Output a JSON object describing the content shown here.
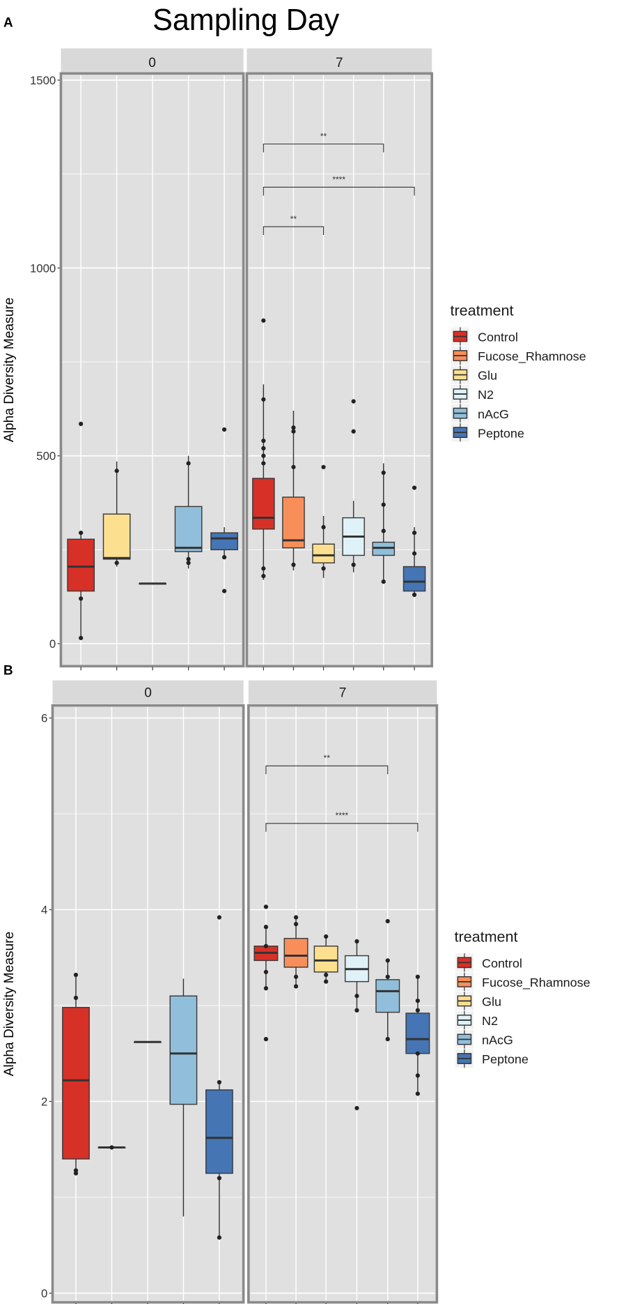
{
  "title": "Sampling Day",
  "legend": {
    "title": "treatment",
    "items": [
      {
        "label": "Control",
        "color": "#d73027"
      },
      {
        "label": "Fucose_Rhamnose",
        "color": "#f88f5a"
      },
      {
        "label": "Glu",
        "color": "#fde08f"
      },
      {
        "label": "N2",
        "color": "#dff2f8"
      },
      {
        "label": "nAcG",
        "color": "#91bfdb"
      },
      {
        "label": "Peptone",
        "color": "#4575b4"
      }
    ]
  },
  "chart_data": [
    {
      "type": "box",
      "panel_label": "A",
      "ylabel": "Alpha Diversity Measure",
      "ylim": [
        0,
        1500
      ],
      "yticks": [
        0,
        500,
        1000,
        1500
      ],
      "facets": [
        {
          "label": "0",
          "groups": [
            {
              "treatment": "Control",
              "q1": 140,
              "median": 205,
              "q3": 278,
              "lo": 15,
              "hi": 295,
              "points": [
                585,
                295,
                120,
                15
              ]
            },
            {
              "treatment": "Glu",
              "q1": 225,
              "median": 228,
              "q3": 345,
              "lo": 205,
              "hi": 485,
              "points": [
                460,
                215
              ]
            },
            {
              "treatment": "N2",
              "q1": 160,
              "median": 160,
              "q3": 160,
              "lo": 160,
              "hi": 160,
              "points": []
            },
            {
              "treatment": "nAcG",
              "q1": 245,
              "median": 255,
              "q3": 365,
              "lo": 200,
              "hi": 500,
              "points": [
                480,
                225,
                215
              ]
            },
            {
              "treatment": "Peptone",
              "q1": 250,
              "median": 280,
              "q3": 295,
              "lo": 230,
              "hi": 310,
              "points": [
                570,
                140,
                230
              ]
            }
          ],
          "brackets": []
        },
        {
          "label": "7",
          "groups": [
            {
              "treatment": "Control",
              "q1": 305,
              "median": 335,
              "q3": 440,
              "lo": 170,
              "hi": 690,
              "points": [
                860,
                650,
                540,
                520,
                500,
                480,
                200,
                180
              ]
            },
            {
              "treatment": "Fucose_Rhamnose",
              "q1": 255,
              "median": 275,
              "q3": 390,
              "lo": 195,
              "hi": 620,
              "points": [
                575,
                565,
                470,
                210
              ]
            },
            {
              "treatment": "Glu",
              "q1": 215,
              "median": 235,
              "q3": 265,
              "lo": 175,
              "hi": 340,
              "points": [
                470,
                310,
                200
              ]
            },
            {
              "treatment": "N2",
              "q1": 235,
              "median": 285,
              "q3": 335,
              "lo": 190,
              "hi": 380,
              "points": [
                645,
                565,
                210
              ]
            },
            {
              "treatment": "nAcG",
              "q1": 235,
              "median": 255,
              "q3": 270,
              "lo": 165,
              "hi": 480,
              "points": [
                455,
                370,
                300,
                165
              ]
            },
            {
              "treatment": "Peptone",
              "q1": 140,
              "median": 165,
              "q3": 205,
              "lo": 125,
              "hi": 310,
              "points": [
                415,
                295,
                240,
                130
              ]
            }
          ],
          "brackets": [
            {
              "from": 0,
              "to": 4,
              "y": 1330,
              "label": "**"
            },
            {
              "from": 0,
              "to": 5,
              "y": 1215,
              "label": "****"
            },
            {
              "from": 0,
              "to": 2,
              "y": 1110,
              "label": "**"
            }
          ]
        }
      ]
    },
    {
      "type": "box",
      "panel_label": "B",
      "ylabel": "Alpha Diversity Measure",
      "ylim": [
        0,
        6
      ],
      "yticks": [
        0,
        2,
        4,
        6
      ],
      "facets": [
        {
          "label": "0",
          "groups": [
            {
              "treatment": "Control",
              "q1": 1.4,
              "median": 2.22,
              "q3": 2.98,
              "lo": 1.25,
              "hi": 3.32,
              "points": [
                3.32,
                3.08,
                1.28,
                1.25
              ]
            },
            {
              "treatment": "Glu",
              "q1": 1.52,
              "median": 1.52,
              "q3": 1.52,
              "lo": 1.52,
              "hi": 1.52,
              "points": [
                1.52
              ]
            },
            {
              "treatment": "N2",
              "q1": 2.62,
              "median": 2.62,
              "q3": 2.62,
              "lo": 2.62,
              "hi": 2.62,
              "points": []
            },
            {
              "treatment": "nAcG",
              "q1": 1.97,
              "median": 2.5,
              "q3": 3.1,
              "lo": 0.8,
              "hi": 3.28,
              "points": []
            },
            {
              "treatment": "Peptone",
              "q1": 1.25,
              "median": 1.62,
              "q3": 2.12,
              "lo": 0.58,
              "hi": 2.22,
              "points": [
                3.92,
                2.2,
                1.2,
                0.58
              ]
            }
          ],
          "brackets": []
        },
        {
          "label": "7",
          "groups": [
            {
              "treatment": "Control",
              "q1": 3.47,
              "median": 3.55,
              "q3": 3.62,
              "lo": 3.2,
              "hi": 3.82,
              "points": [
                4.03,
                3.82,
                3.62,
                3.35,
                3.18,
                2.65
              ]
            },
            {
              "treatment": "Fucose_Rhamnose",
              "q1": 3.4,
              "median": 3.52,
              "q3": 3.7,
              "lo": 3.2,
              "hi": 3.92,
              "points": [
                3.92,
                3.85,
                3.3,
                3.2
              ]
            },
            {
              "treatment": "Glu",
              "q1": 3.35,
              "median": 3.47,
              "q3": 3.62,
              "lo": 3.25,
              "hi": 3.72,
              "points": [
                3.72,
                3.32,
                3.25
              ]
            },
            {
              "treatment": "N2",
              "q1": 3.25,
              "median": 3.38,
              "q3": 3.52,
              "lo": 2.95,
              "hi": 3.67,
              "points": [
                3.67,
                3.1,
                2.95,
                1.93
              ]
            },
            {
              "treatment": "nAcG",
              "q1": 2.93,
              "median": 3.15,
              "q3": 3.27,
              "lo": 2.65,
              "hi": 3.47,
              "points": [
                3.88,
                3.47,
                3.3,
                2.65
              ]
            },
            {
              "treatment": "Peptone",
              "q1": 2.5,
              "median": 2.65,
              "q3": 2.92,
              "lo": 2.08,
              "hi": 3.3,
              "points": [
                3.3,
                3.05,
                2.95,
                2.5,
                2.27,
                2.08
              ]
            }
          ],
          "brackets": [
            {
              "from": 0,
              "to": 4,
              "y": 5.5,
              "label": "**"
            },
            {
              "from": 0,
              "to": 5,
              "y": 4.9,
              "label": "****"
            }
          ]
        }
      ]
    }
  ]
}
